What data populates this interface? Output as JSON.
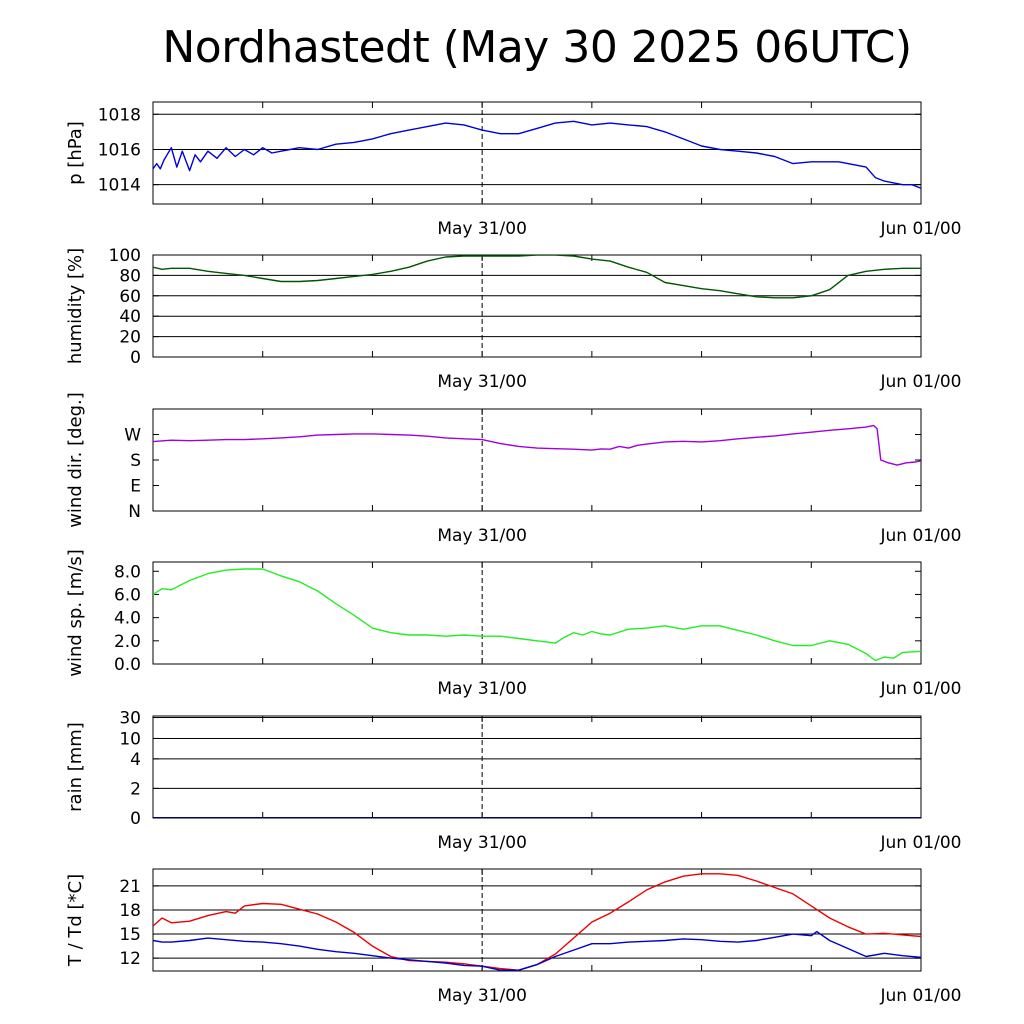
{
  "title": "Nordhastedt (May 30 2025 06UTC)",
  "colors": {
    "pressure": "#0000dd",
    "humidity": "#005500",
    "wind_dir": "#a000e0",
    "wind_speed": "#22ee22",
    "rain": "#000066",
    "temperature": "#ee0000",
    "dewpoint": "#0000cc"
  },
  "chart_data": [
    {
      "type": "line",
      "ylabel": "p [hPa]",
      "x_ticks": [
        "May 31/00",
        "Jun 01/00"
      ],
      "x_range_hours": [
        6,
        48
      ],
      "ylim": [
        1012.9,
        1018.7
      ],
      "y_ticks": [
        {
          "value": 1014,
          "label": "1014"
        },
        {
          "value": 1016,
          "label": "1016"
        },
        {
          "value": 1018,
          "label": "1018"
        }
      ],
      "gridlines": [
        1014,
        1016,
        1018
      ],
      "series": [
        {
          "color_key": "pressure",
          "x": [
            6,
            6.2,
            6.4,
            6.6,
            7,
            7.3,
            7.6,
            8,
            8.3,
            8.6,
            9,
            9.5,
            10,
            10.5,
            11,
            11.5,
            12,
            12.5,
            13,
            13.5,
            14,
            15,
            16,
            17,
            18,
            19,
            20,
            21,
            22,
            23,
            24,
            25,
            26,
            27,
            28,
            29,
            30,
            31,
            32,
            33,
            34,
            35,
            36,
            37,
            38,
            39,
            40,
            41,
            42,
            42.5,
            43,
            43.5,
            44,
            45,
            45.5,
            46,
            46.5,
            47,
            47.5,
            48
          ],
          "y": [
            1014.9,
            1015.2,
            1014.9,
            1015.4,
            1016.1,
            1015.0,
            1015.9,
            1014.8,
            1015.7,
            1015.3,
            1015.9,
            1015.5,
            1016.1,
            1015.6,
            1016.0,
            1015.7,
            1016.1,
            1015.8,
            1015.9,
            1016.0,
            1016.1,
            1016.0,
            1016.3,
            1016.4,
            1016.6,
            1016.9,
            1017.1,
            1017.3,
            1017.5,
            1017.4,
            1017.1,
            1016.9,
            1016.9,
            1017.2,
            1017.5,
            1017.6,
            1017.4,
            1017.5,
            1017.4,
            1017.3,
            1017.0,
            1016.6,
            1016.2,
            1016.0,
            1015.9,
            1015.8,
            1015.6,
            1015.2,
            1015.3,
            1015.3,
            1015.3,
            1015.3,
            1015.2,
            1015.0,
            1014.4,
            1014.2,
            1014.1,
            1014.0,
            1014.0,
            1013.8
          ]
        }
      ]
    },
    {
      "type": "line",
      "ylabel": "humidity [%]",
      "x_ticks": [
        "May 31/00",
        "Jun 01/00"
      ],
      "x_range_hours": [
        6,
        48
      ],
      "ylim": [
        0,
        100
      ],
      "y_ticks": [
        {
          "value": 0,
          "label": "0"
        },
        {
          "value": 20,
          "label": "20"
        },
        {
          "value": 40,
          "label": "40"
        },
        {
          "value": 60,
          "label": "60"
        },
        {
          "value": 80,
          "label": "80"
        },
        {
          "value": 100,
          "label": "100"
        }
      ],
      "gridlines": [
        20,
        40,
        60,
        80,
        100
      ],
      "series": [
        {
          "color_key": "humidity",
          "x": [
            6,
            6.5,
            7,
            8,
            9,
            10,
            11,
            12,
            13,
            14,
            15,
            16,
            17,
            18,
            19,
            20,
            21,
            22,
            23,
            24,
            25,
            26,
            27,
            28,
            29,
            30,
            31,
            32,
            33,
            34,
            35,
            36,
            37,
            38,
            39,
            40,
            41,
            42,
            43,
            44,
            45,
            46,
            47,
            48
          ],
          "y": [
            88,
            86,
            87,
            87,
            84,
            82,
            80,
            77,
            74,
            74,
            75,
            77,
            79,
            81,
            84,
            88,
            94,
            98,
            99,
            99,
            99,
            99,
            100,
            100,
            99,
            96,
            94,
            88,
            83,
            73,
            70,
            67,
            65,
            62,
            59,
            58,
            58,
            60,
            66,
            80,
            84,
            86,
            87,
            87
          ]
        }
      ]
    },
    {
      "type": "line",
      "ylabel": "wind dir. [deg.]",
      "x_ticks": [
        "May 31/00",
        "Jun 01/00"
      ],
      "x_range_hours": [
        6,
        48
      ],
      "ylim": [
        0,
        360
      ],
      "y_ticks": [
        {
          "value": 0,
          "label": "N"
        },
        {
          "value": 90,
          "label": "E"
        },
        {
          "value": 180,
          "label": "S"
        },
        {
          "value": 270,
          "label": "W"
        }
      ],
      "gridlines": [],
      "series": [
        {
          "color_key": "wind_dir",
          "x": [
            6,
            7,
            8,
            9,
            10,
            11,
            12,
            13,
            14,
            15,
            16,
            17,
            18,
            19,
            20,
            21,
            22,
            23,
            24,
            25,
            26,
            27,
            28,
            29,
            30,
            30.5,
            31,
            31.5,
            32,
            32.5,
            33,
            34,
            35,
            36,
            37,
            38,
            39,
            40,
            41,
            42,
            43,
            44,
            45,
            45.4,
            45.6,
            45.8,
            46.2,
            46.7,
            47.2,
            47.7,
            48
          ],
          "y": [
            245,
            250,
            248,
            250,
            252,
            252,
            255,
            258,
            262,
            268,
            270,
            272,
            272,
            270,
            268,
            264,
            258,
            255,
            252,
            238,
            228,
            222,
            220,
            218,
            215,
            219,
            218,
            228,
            222,
            232,
            236,
            244,
            246,
            244,
            248,
            255,
            260,
            265,
            272,
            278,
            285,
            290,
            296,
            302,
            290,
            180,
            170,
            162,
            170,
            173,
            177
          ]
        }
      ]
    },
    {
      "type": "line",
      "ylabel": "wind sp. [m/s]",
      "x_ticks": [
        "May 31/00",
        "Jun 01/00"
      ],
      "x_range_hours": [
        6,
        48
      ],
      "ylim": [
        0,
        8.8
      ],
      "y_ticks": [
        {
          "value": 0,
          "label": "0.0"
        },
        {
          "value": 2,
          "label": "2.0"
        },
        {
          "value": 4,
          "label": "4.0"
        },
        {
          "value": 6,
          "label": "6.0"
        },
        {
          "value": 8,
          "label": "8.0"
        }
      ],
      "gridlines": [],
      "series": [
        {
          "color_key": "wind_speed",
          "x": [
            6,
            6.5,
            7,
            8,
            9,
            10,
            11,
            12,
            13,
            14,
            15,
            16,
            17,
            18,
            19,
            20,
            21,
            22,
            23,
            24,
            25,
            26,
            27,
            28,
            28.5,
            29,
            29.5,
            30,
            30.5,
            31,
            32,
            33,
            34,
            35,
            36,
            37,
            38,
            39,
            40,
            41,
            42,
            43,
            44,
            45,
            45.5,
            46,
            46.5,
            47,
            48
          ],
          "y": [
            6.0,
            6.5,
            6.4,
            7.2,
            7.8,
            8.1,
            8.2,
            8.2,
            7.6,
            7.1,
            6.3,
            5.2,
            4.2,
            3.1,
            2.7,
            2.5,
            2.5,
            2.4,
            2.5,
            2.4,
            2.4,
            2.2,
            2.0,
            1.8,
            2.3,
            2.7,
            2.5,
            2.8,
            2.6,
            2.5,
            3.0,
            3.1,
            3.3,
            3.0,
            3.3,
            3.3,
            2.9,
            2.5,
            2.0,
            1.6,
            1.6,
            2.0,
            1.7,
            0.9,
            0.3,
            0.6,
            0.5,
            1.0,
            1.1
          ]
        }
      ]
    },
    {
      "type": "line",
      "ylabel": "rain [mm]",
      "x_ticks": [
        "May 31/00",
        "Jun 01/00"
      ],
      "x_range_hours": [
        6,
        48
      ],
      "y_scale": "nonlinear",
      "y_ticks": [
        {
          "value": 0,
          "label": "0"
        },
        {
          "value": 2,
          "label": "2"
        },
        {
          "value": 4,
          "label": "4"
        },
        {
          "value": 10,
          "label": "10"
        },
        {
          "value": 30,
          "label": "30"
        }
      ],
      "gridlines": [
        0,
        2,
        4,
        10,
        30
      ],
      "series": [
        {
          "color_key": "rain",
          "x": [
            6,
            48
          ],
          "y": [
            0,
            0
          ]
        }
      ]
    },
    {
      "type": "line",
      "ylabel": "T / Td [*C]",
      "x_ticks": [
        "May 31/00",
        "Jun 01/00"
      ],
      "x_range_hours": [
        6,
        48
      ],
      "ylim": [
        10.4,
        23.1
      ],
      "y_ticks": [
        {
          "value": 12,
          "label": "12"
        },
        {
          "value": 15,
          "label": "15"
        },
        {
          "value": 18,
          "label": "18"
        },
        {
          "value": 21,
          "label": "21"
        }
      ],
      "gridlines": [
        12,
        15,
        18,
        21
      ],
      "series": [
        {
          "color_key": "temperature",
          "x": [
            6,
            6.5,
            7,
            8,
            9,
            10,
            10.5,
            11,
            12,
            13,
            14,
            15,
            16,
            17,
            18,
            19,
            20,
            21,
            22,
            23,
            24,
            25,
            26,
            27,
            28,
            29,
            30,
            31,
            32,
            33,
            34,
            35,
            36,
            37,
            38,
            39,
            40,
            41,
            42,
            43,
            44,
            45,
            46,
            47,
            48
          ],
          "y": [
            16.0,
            17.0,
            16.4,
            16.6,
            17.3,
            17.8,
            17.6,
            18.5,
            18.8,
            18.7,
            18.1,
            17.5,
            16.5,
            15.2,
            13.5,
            12.2,
            11.7,
            11.6,
            11.5,
            11.3,
            11.0,
            10.7,
            10.5,
            11.2,
            12.5,
            14.5,
            16.5,
            17.6,
            19.0,
            20.5,
            21.5,
            22.2,
            22.5,
            22.5,
            22.3,
            21.6,
            20.8,
            20.0,
            18.5,
            17.0,
            15.9,
            15.0,
            15.1,
            14.9,
            14.7
          ]
        },
        {
          "color_key": "dewpoint",
          "x": [
            6,
            6.5,
            7,
            8,
            9,
            10,
            11,
            12,
            13,
            14,
            15,
            16,
            17,
            18,
            19,
            20,
            21,
            22,
            23,
            24,
            25,
            26,
            27,
            28,
            29,
            30,
            31,
            32,
            33,
            34,
            35,
            36,
            37,
            38,
            39,
            40,
            41,
            42,
            42.3,
            43,
            44,
            45,
            46,
            47,
            48
          ],
          "y": [
            14.2,
            14.0,
            14.0,
            14.2,
            14.5,
            14.3,
            14.1,
            14.0,
            13.8,
            13.5,
            13.1,
            12.8,
            12.6,
            12.3,
            12.0,
            11.8,
            11.6,
            11.4,
            11.1,
            11.0,
            10.5,
            10.5,
            11.2,
            12.2,
            13.0,
            13.8,
            13.8,
            14.0,
            14.1,
            14.2,
            14.4,
            14.3,
            14.1,
            14.0,
            14.2,
            14.6,
            15.0,
            14.8,
            15.3,
            14.2,
            13.2,
            12.2,
            12.6,
            12.3,
            12.1
          ]
        }
      ]
    }
  ]
}
